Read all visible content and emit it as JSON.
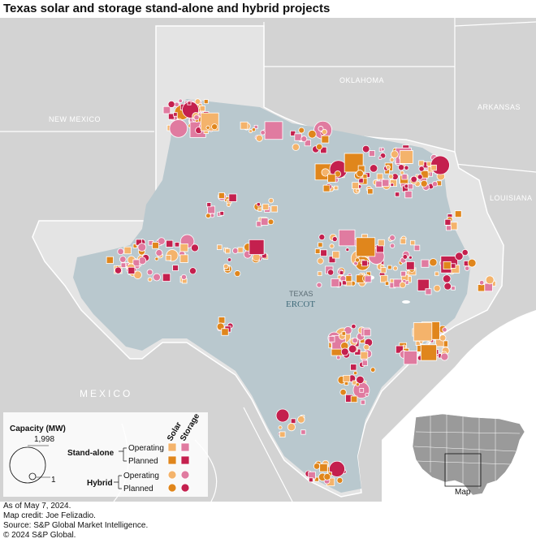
{
  "title": "Texas solar and storage stand-alone and hybrid projects",
  "map_labels": {
    "new_mexico": "NEW MEXICO",
    "oklahoma": "OKLAHOMA",
    "arkansas": "ARKANSAS",
    "louisiana": "LOUISIANA",
    "mexico": "MEXICO",
    "texas": "TEXAS",
    "ercot": "ERCOT"
  },
  "colors": {
    "land": "#d9d9d9",
    "texas_fill": "#dedede",
    "ercot_fill": "#b9c8ce",
    "water": "#ffffff",
    "solar_operating": "#f4b36b",
    "solar_planned": "#e0861c",
    "storage_operating": "#e07ba0",
    "storage_planned": "#c4204e"
  },
  "legend": {
    "capacity_title": "Capacity (MW)",
    "capacity_max": "1,998",
    "capacity_min": "1",
    "col_solar": "Solar",
    "col_storage": "Storage",
    "standalone_label": "Stand-alone",
    "hybrid_label": "Hybrid",
    "operating_label": "Operating",
    "planned_label": "Planned"
  },
  "inset": {
    "label": "Map"
  },
  "footer": {
    "date": "As of May 7, 2024.",
    "credit": "Map credit: Joe Felizadio.",
    "source": "Source: S&P Global Market Intelligence.",
    "copyright": "© 2024 S&P Global."
  }
}
